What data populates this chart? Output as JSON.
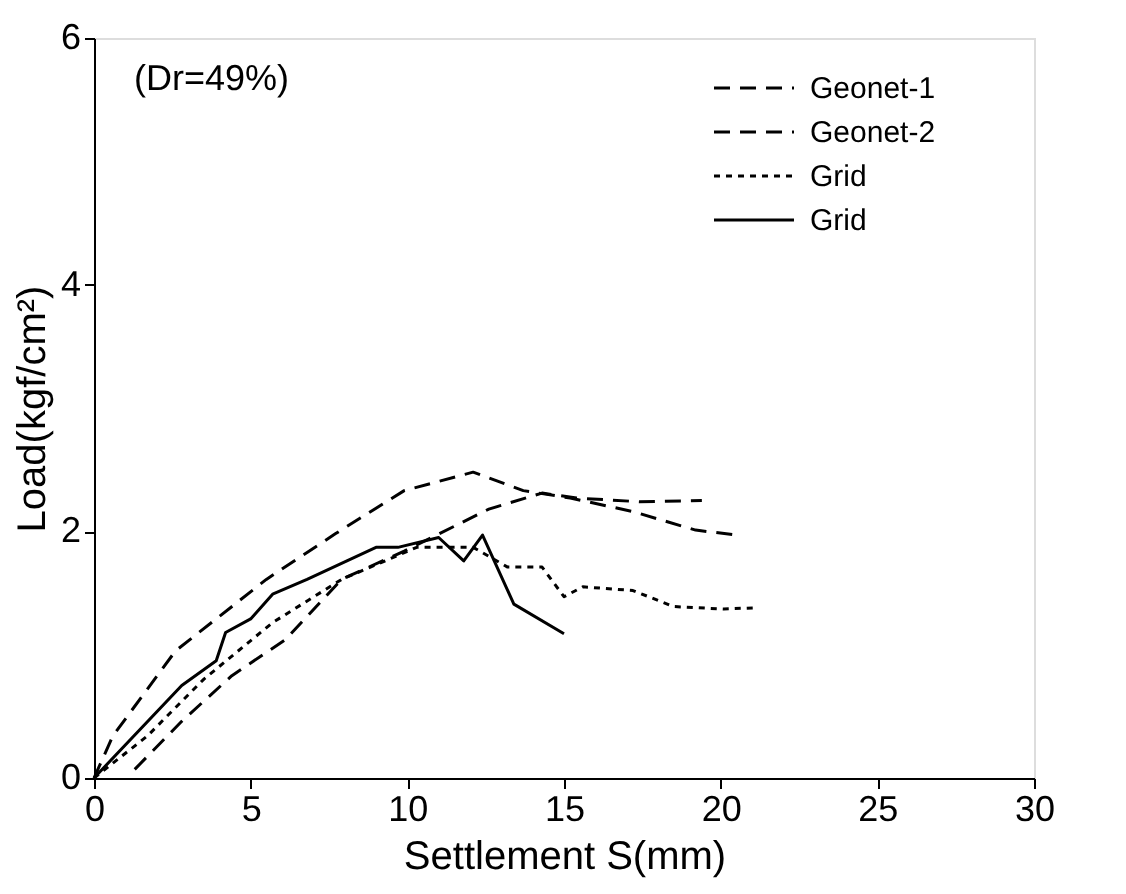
{
  "chart_data": {
    "type": "line",
    "xlabel": "Settlement  S(mm)",
    "ylabel": "Load(kgf/cm²)",
    "annotations": [
      "(Dr=49%)"
    ],
    "xlim": [
      0,
      30
    ],
    "xticks": [
      0,
      5,
      10,
      15,
      20,
      25,
      30
    ],
    "ylim": [
      0,
      6
    ],
    "yticks": [
      0,
      2,
      4,
      6
    ],
    "grid": false,
    "legend": "top right",
    "marker": "none",
    "series": [
      {
        "name": "Geonet-1",
        "color": "#000000",
        "line_style": "dashed",
        "x": [
          1.3,
          2.8,
          4.4,
          6.1,
          7.9,
          9.9,
          12.6,
          14.3,
          15.4,
          17.4,
          19.4
        ],
        "values": [
          0.07,
          0.46,
          0.83,
          1.12,
          1.61,
          1.84,
          2.18,
          2.31,
          2.27,
          2.24,
          2.25
        ]
      },
      {
        "name": "Geonet-2",
        "color": "#000000",
        "line_style": "dashed",
        "x": [
          0,
          0.6,
          2.6,
          5.5,
          7.7,
          9.9,
          12.1,
          13.7,
          15.2,
          17.2,
          19.2,
          20.5
        ],
        "values": [
          0,
          0.34,
          1.03,
          1.61,
          1.98,
          2.33,
          2.48,
          2.33,
          2.27,
          2.16,
          2.01,
          1.97
        ]
      },
      {
        "name": "Grid",
        "color": "#000000",
        "line_style": "dotted",
        "x": [
          0,
          1.7,
          3.5,
          5.7,
          7.9,
          10.3,
          12.1,
          13.2,
          14.3,
          15.0,
          15.6,
          17.2,
          18.5,
          20.1,
          21.1
        ],
        "values": [
          0,
          0.34,
          0.8,
          1.26,
          1.61,
          1.87,
          1.87,
          1.71,
          1.71,
          1.47,
          1.55,
          1.52,
          1.39,
          1.37,
          1.38
        ]
      },
      {
        "name": "Grid",
        "color": "#000000",
        "line_style": "solid",
        "x": [
          0,
          2.8,
          3.9,
          4.2,
          5.0,
          5.7,
          6.8,
          9.0,
          9.7,
          11.0,
          11.8,
          12.4,
          13.4,
          15.0
        ],
        "values": [
          0,
          0.75,
          0.95,
          1.18,
          1.29,
          1.49,
          1.61,
          1.87,
          1.87,
          1.95,
          1.76,
          1.97,
          1.41,
          1.17
        ]
      }
    ]
  }
}
